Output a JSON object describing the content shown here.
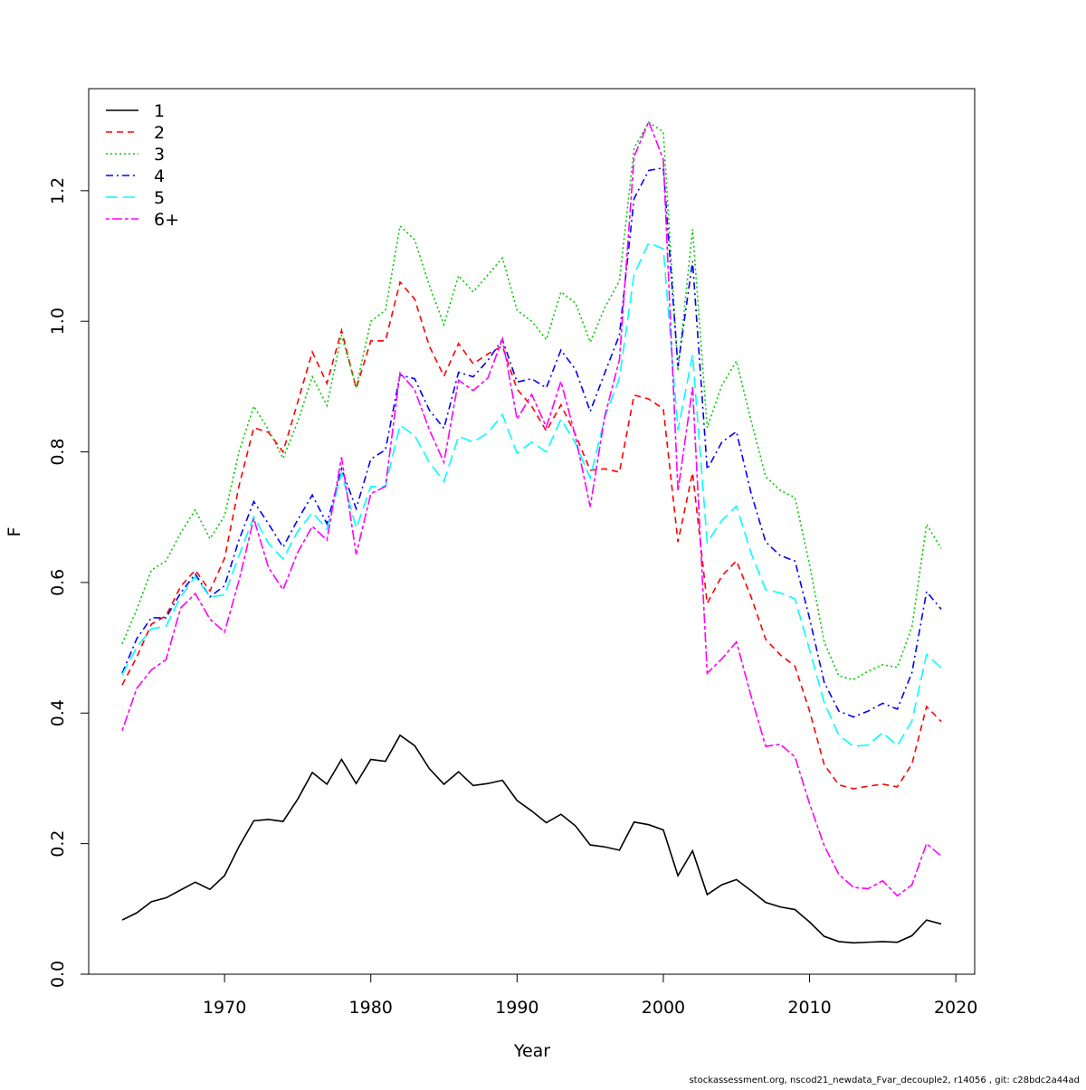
{
  "chart_data": {
    "type": "line",
    "title": "",
    "xlabel": "Year",
    "ylabel": "F",
    "xlim": [
      1963,
      2019
    ],
    "ylim": [
      0.0,
      1.3
    ],
    "xticks": [
      1970,
      1980,
      1990,
      2000,
      2010,
      2020
    ],
    "xtick_labels": [
      "1970",
      "1980",
      "1990",
      "2000",
      "2010",
      "2020"
    ],
    "yticks": [
      0.0,
      0.2,
      0.4,
      0.6,
      0.8,
      1.0,
      1.2
    ],
    "ytick_labels": [
      "0.0",
      "0.2",
      "0.4",
      "0.6",
      "0.8",
      "1.0",
      "1.2"
    ],
    "grid": false,
    "legend_position": "top-left",
    "x": [
      1963,
      1964,
      1965,
      1966,
      1967,
      1968,
      1969,
      1970,
      1971,
      1972,
      1973,
      1974,
      1975,
      1976,
      1977,
      1978,
      1979,
      1980,
      1981,
      1982,
      1983,
      1984,
      1985,
      1986,
      1987,
      1988,
      1989,
      1990,
      1991,
      1992,
      1993,
      1994,
      1995,
      1996,
      1997,
      1998,
      1999,
      2000,
      2001,
      2002,
      2003,
      2004,
      2005,
      2006,
      2007,
      2008,
      2009,
      2010,
      2011,
      2012,
      2013,
      2014,
      2015,
      2016,
      2017,
      2018,
      2019
    ],
    "series": [
      {
        "name": "1",
        "color": "#000000",
        "dash": "solid",
        "values": [
          0.083,
          0.094,
          0.111,
          0.117,
          0.129,
          0.141,
          0.13,
          0.151,
          0.196,
          0.235,
          0.237,
          0.234,
          0.268,
          0.309,
          0.291,
          0.329,
          0.292,
          0.329,
          0.326,
          0.366,
          0.35,
          0.315,
          0.291,
          0.31,
          0.289,
          0.292,
          0.297,
          0.266,
          0.25,
          0.232,
          0.245,
          0.227,
          0.198,
          0.195,
          0.19,
          0.233,
          0.229,
          0.221,
          0.151,
          0.189,
          0.122,
          0.137,
          0.145,
          0.128,
          0.11,
          0.103,
          0.099,
          0.08,
          0.058,
          0.05,
          0.048,
          0.049,
          0.05,
          0.049,
          0.059,
          0.083,
          0.077
        ]
      },
      {
        "name": "2",
        "color": "#ff0000",
        "dash": "dashed",
        "values": [
          0.443,
          0.486,
          0.536,
          0.549,
          0.594,
          0.619,
          0.587,
          0.637,
          0.749,
          0.837,
          0.83,
          0.8,
          0.876,
          0.953,
          0.905,
          0.986,
          0.897,
          0.97,
          0.97,
          1.06,
          1.034,
          0.962,
          0.916,
          0.966,
          0.935,
          0.95,
          0.962,
          0.896,
          0.87,
          0.832,
          0.872,
          0.826,
          0.772,
          0.774,
          0.769,
          0.887,
          0.881,
          0.866,
          0.662,
          0.768,
          0.568,
          0.61,
          0.633,
          0.578,
          0.513,
          0.489,
          0.472,
          0.403,
          0.321,
          0.29,
          0.284,
          0.288,
          0.291,
          0.287,
          0.322,
          0.41,
          0.387
        ]
      },
      {
        "name": "3",
        "color": "#00cd00",
        "dash": "dotted",
        "values": [
          0.506,
          0.559,
          0.619,
          0.633,
          0.676,
          0.711,
          0.667,
          0.702,
          0.801,
          0.87,
          0.834,
          0.79,
          0.846,
          0.915,
          0.871,
          0.979,
          0.899,
          1.0,
          1.017,
          1.146,
          1.125,
          1.055,
          0.995,
          1.07,
          1.045,
          1.071,
          1.097,
          1.017,
          1.0,
          0.972,
          1.045,
          1.028,
          0.968,
          1.021,
          1.062,
          1.265,
          1.305,
          1.29,
          0.924,
          1.141,
          0.837,
          0.902,
          0.939,
          0.848,
          0.762,
          0.741,
          0.73,
          0.627,
          0.509,
          0.457,
          0.451,
          0.464,
          0.474,
          0.47,
          0.532,
          0.689,
          0.652
        ]
      },
      {
        "name": "4",
        "color": "#0000ff",
        "dash": "dashdot",
        "values": [
          0.461,
          0.514,
          0.546,
          0.546,
          0.584,
          0.613,
          0.578,
          0.595,
          0.666,
          0.724,
          0.69,
          0.654,
          0.696,
          0.734,
          0.69,
          0.774,
          0.713,
          0.789,
          0.803,
          0.918,
          0.912,
          0.864,
          0.836,
          0.922,
          0.915,
          0.94,
          0.972,
          0.907,
          0.912,
          0.898,
          0.956,
          0.926,
          0.862,
          0.921,
          0.979,
          1.188,
          1.231,
          1.235,
          0.931,
          1.092,
          0.773,
          0.815,
          0.831,
          0.737,
          0.662,
          0.641,
          0.633,
          0.545,
          0.447,
          0.403,
          0.394,
          0.403,
          0.415,
          0.406,
          0.462,
          0.586,
          0.559
        ]
      },
      {
        "name": "5",
        "color": "#00ffff",
        "dash": "longdash",
        "values": [
          0.459,
          0.501,
          0.529,
          0.533,
          0.578,
          0.609,
          0.578,
          0.581,
          0.642,
          0.701,
          0.66,
          0.636,
          0.678,
          0.707,
          0.682,
          0.768,
          0.683,
          0.747,
          0.747,
          0.841,
          0.825,
          0.784,
          0.755,
          0.824,
          0.815,
          0.829,
          0.857,
          0.798,
          0.815,
          0.8,
          0.85,
          0.813,
          0.76,
          0.853,
          0.913,
          1.072,
          1.12,
          1.111,
          0.833,
          0.949,
          0.661,
          0.695,
          0.717,
          0.645,
          0.589,
          0.584,
          0.575,
          0.497,
          0.416,
          0.366,
          0.349,
          0.351,
          0.37,
          0.35,
          0.388,
          0.49,
          0.469
        ]
      },
      {
        "name": "6+",
        "color": "#ff00ff",
        "dash": "twodash",
        "values": [
          0.373,
          0.438,
          0.466,
          0.482,
          0.561,
          0.583,
          0.544,
          0.524,
          0.604,
          0.698,
          0.623,
          0.589,
          0.646,
          0.686,
          0.665,
          0.792,
          0.643,
          0.736,
          0.747,
          0.921,
          0.895,
          0.834,
          0.784,
          0.91,
          0.894,
          0.913,
          0.973,
          0.85,
          0.888,
          0.838,
          0.908,
          0.823,
          0.716,
          0.855,
          0.941,
          1.252,
          1.306,
          1.248,
          0.74,
          0.899,
          0.461,
          0.483,
          0.509,
          0.426,
          0.349,
          0.352,
          0.333,
          0.261,
          0.197,
          0.153,
          0.133,
          0.131,
          0.143,
          0.12,
          0.137,
          0.2,
          0.181
        ]
      }
    ]
  },
  "footer": {
    "note": "stockassessment.org, nscod21_newdata_Fvar_decouple2, r14056 , git: c28bdc2a44ad"
  }
}
